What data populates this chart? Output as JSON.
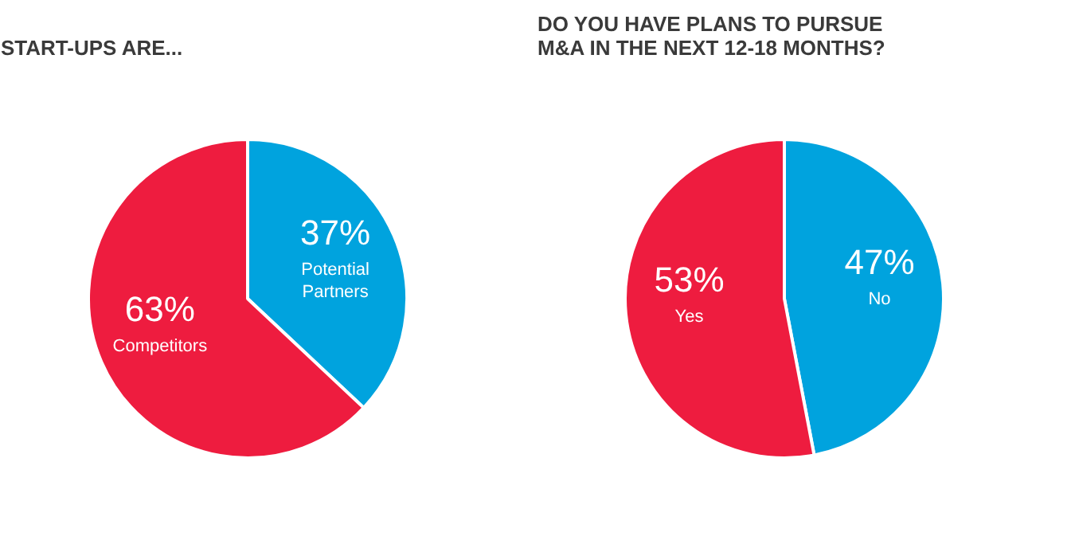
{
  "chart_data": [
    {
      "type": "pie",
      "title": "START-UPS ARE...",
      "categories": [
        "Potential\nPartners",
        "Competitors"
      ],
      "values": [
        37,
        63
      ],
      "colors": [
        "#00a3de",
        "#ee1c3f"
      ],
      "value_labels": [
        "37%",
        "63%"
      ]
    },
    {
      "type": "pie",
      "title": "DO YOU HAVE PLANS TO PURSUE\nM&A IN THE NEXT 12-18 MONTHS?",
      "categories": [
        "No",
        "Yes"
      ],
      "values": [
        47,
        53
      ],
      "colors": [
        "#00a3de",
        "#ee1c3f"
      ],
      "value_labels": [
        "47%",
        "53%"
      ]
    }
  ]
}
